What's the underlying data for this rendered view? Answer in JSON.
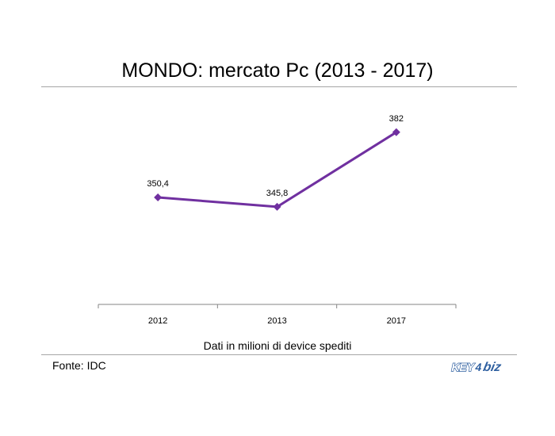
{
  "chart_data": {
    "type": "line",
    "title": "MONDO: mercato Pc (2013 - 2017)",
    "xlabel": "Dati in milioni di device spediti",
    "ylabel": "",
    "categories": [
      "2012",
      "2013",
      "2017"
    ],
    "series": [
      {
        "values": [
          350.4,
          345.8,
          382
        ],
        "data_labels": [
          "350,4",
          "345,8",
          "382"
        ],
        "color": "#7030a0"
      }
    ],
    "ylim": [
      300,
      400
    ],
    "grid": false,
    "legend": "none"
  },
  "footer": {
    "source": "Fonte: IDC",
    "logo_text": "KEY4biz"
  }
}
